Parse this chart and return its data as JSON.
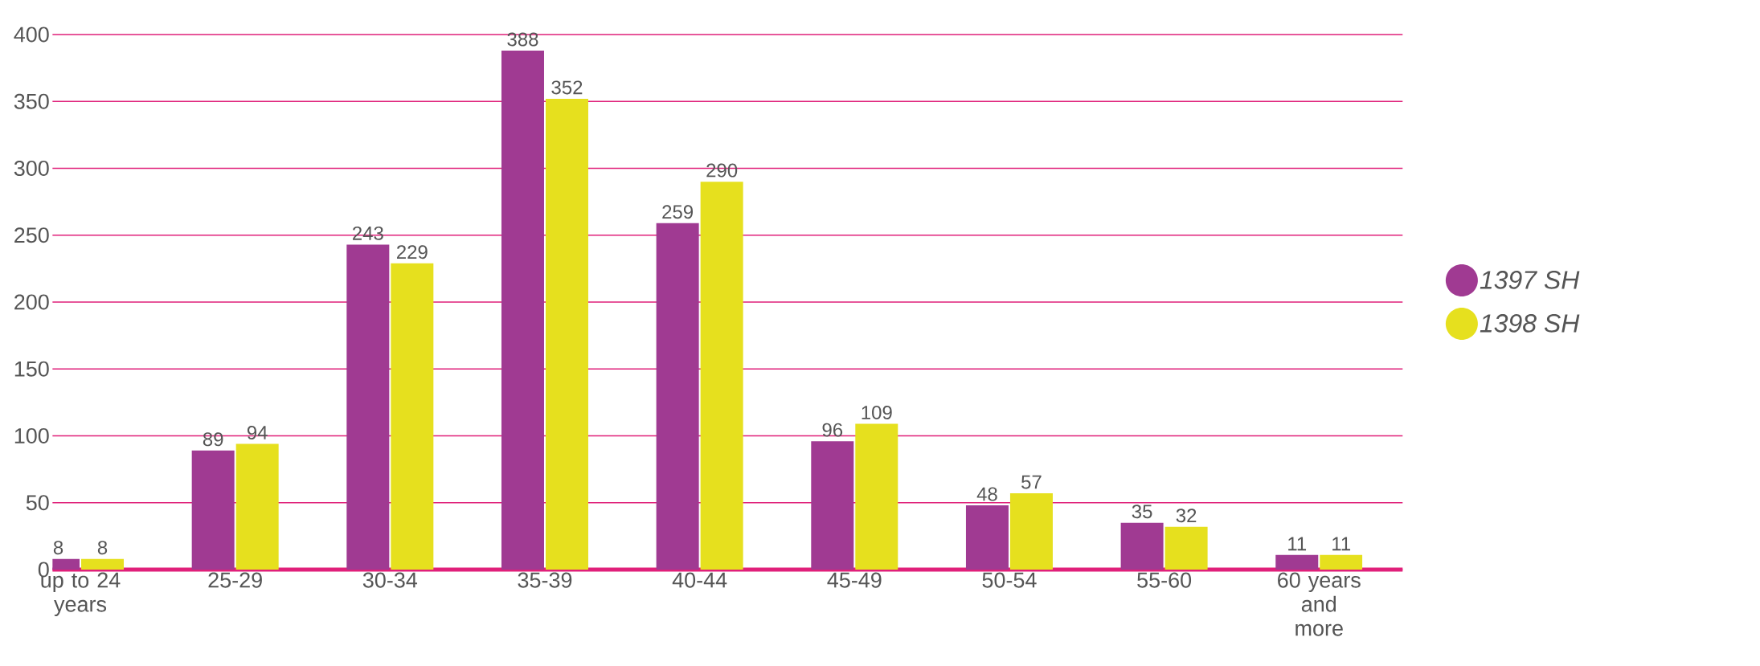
{
  "chart_data": {
    "type": "bar",
    "categories": [
      "up to 24 years",
      "25-29",
      "30-34",
      "35-39",
      "40-44",
      "45-49",
      "50-54",
      "55-60",
      "60 years and more"
    ],
    "series": [
      {
        "name": "1397 SH",
        "color": "#a03a92",
        "values": [
          8,
          89,
          243,
          388,
          259,
          96,
          48,
          35,
          11
        ]
      },
      {
        "name": "1398 SH",
        "color": "#e6e01e",
        "values": [
          8,
          94,
          229,
          352,
          290,
          109,
          57,
          32,
          11
        ]
      }
    ],
    "ylim": [
      0,
      400
    ],
    "yticks": [
      0,
      50,
      100,
      150,
      200,
      250,
      300,
      350,
      400
    ],
    "grid": "y",
    "legend": "right",
    "data_labels": true
  }
}
